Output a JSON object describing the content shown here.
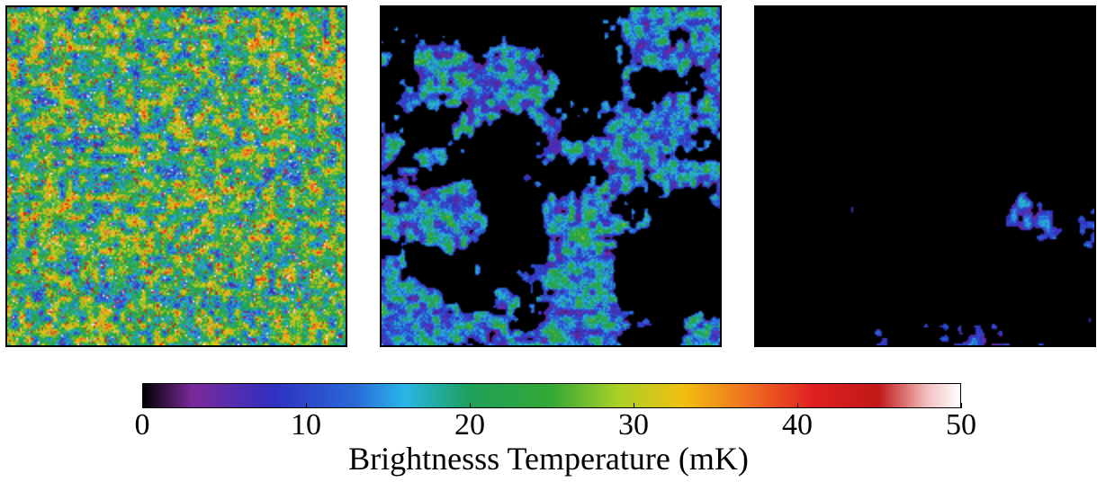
{
  "chart_data": {
    "type": "heatmap",
    "panels": [
      {
        "name": "",
        "ionized_fraction": "low"
      },
      {
        "name": "",
        "ionized_fraction": "medium"
      },
      {
        "name": "",
        "ionized_fraction": "high"
      }
    ],
    "colorbar": {
      "label": "Brightnesss Temperature (mK)",
      "range": [
        0,
        50
      ],
      "ticks": [
        0,
        10,
        20,
        30,
        40,
        50
      ],
      "tick_labels": [
        "0",
        "10",
        "20",
        "30",
        "40",
        "50"
      ],
      "colormap_stops": [
        {
          "value": 0,
          "color": "#000000"
        },
        {
          "value": 3,
          "color": "#7a2a9a"
        },
        {
          "value": 8,
          "color": "#3030c0"
        },
        {
          "value": 13,
          "color": "#2a6ad8"
        },
        {
          "value": 16,
          "color": "#29b6e8"
        },
        {
          "value": 20,
          "color": "#1ea05a"
        },
        {
          "value": 25,
          "color": "#34a835"
        },
        {
          "value": 29,
          "color": "#a8d028"
        },
        {
          "value": 33,
          "color": "#f0c010"
        },
        {
          "value": 37,
          "color": "#f07020"
        },
        {
          "value": 41,
          "color": "#e02020"
        },
        {
          "value": 45,
          "color": "#c01818"
        },
        {
          "value": 48,
          "color": "#f4c0c0"
        },
        {
          "value": 50,
          "color": "#ffffff"
        }
      ]
    }
  }
}
